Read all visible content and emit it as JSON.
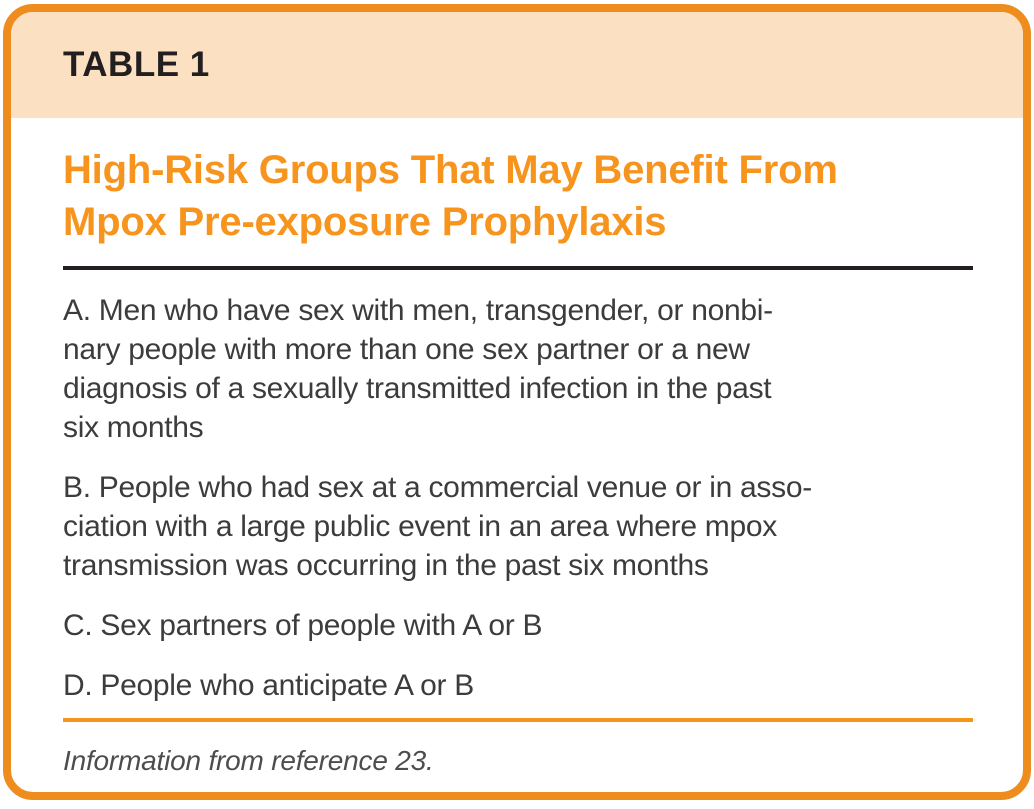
{
  "colors": {
    "border_orange": "#EE8C1E",
    "accent_orange": "#F7941D",
    "header_peach": "#FBE1C2",
    "rule_dark": "#231F20",
    "body_text": "#3C3C3C",
    "footnote_text": "#4D4D4D"
  },
  "table": {
    "label": "TABLE 1",
    "title_lines": [
      "High-Risk Groups That May Benefit From",
      "Mpox Pre-exposure Prophylaxis"
    ],
    "items": [
      {
        "lines": [
          "A. Men who have sex with men, transgender, or nonbi-",
          "nary people with more than one sex partner or a new",
          "diagnosis of a sexually transmitted infection in the past",
          "six months"
        ]
      },
      {
        "lines": [
          "B. People who had sex at a commercial venue or in asso-",
          "ciation with a large public event in an area where mpox",
          "transmission was occurring in the past six months"
        ]
      },
      {
        "lines": [
          "C. Sex partners of people with A or B"
        ]
      },
      {
        "lines": [
          "D. People who anticipate A or B"
        ]
      }
    ],
    "footnote": "Information from reference 23."
  }
}
